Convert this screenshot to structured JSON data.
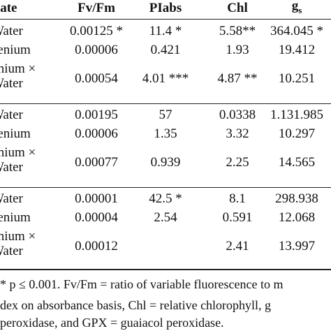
{
  "table": {
    "header": {
      "label": "Variate",
      "columns": [
        "Fv/Fm",
        "PIabs",
        "Chl"
      ],
      "last": {
        "text": "g",
        "sub": "s"
      }
    },
    "groups": [
      {
        "rows": [
          {
            "label": [
              "Water"
            ],
            "cells": [
              "0.00125 *",
              "11.4 *",
              "5.58**",
              "364.045 *"
            ]
          },
          {
            "label": [
              "Selenium"
            ],
            "cells": [
              "0.00006",
              "0.421",
              "1.93",
              "19.412"
            ]
          },
          {
            "label": [
              "Selenium ×",
              "Water"
            ],
            "cells": [
              "0.00054",
              "4.01 ***",
              "4.87 **",
              "10.251"
            ]
          }
        ]
      },
      {
        "rows": [
          {
            "label": [
              "Water"
            ],
            "cells": [
              "0.00195",
              "57",
              "0.0338",
              "1.131.985"
            ]
          },
          {
            "label": [
              "Selenium"
            ],
            "cells": [
              "0.00006",
              "1.35",
              "3.32",
              "10.297"
            ]
          },
          {
            "label": [
              "Selenium ×",
              "Water"
            ],
            "cells": [
              "0.00077",
              "0.939",
              "2.25",
              "14.565"
            ]
          }
        ]
      },
      {
        "rows": [
          {
            "label": [
              "Water"
            ],
            "cells": [
              "0.00001",
              "42.5 *",
              "8.1",
              "298.938"
            ]
          },
          {
            "label": [
              "Selenium"
            ],
            "cells": [
              "0.00004",
              "2.54",
              "0.591",
              "12.068"
            ]
          },
          {
            "label": [
              "Selenium ×",
              "Water"
            ],
            "cells": [
              "0.00012",
              null,
              "2.41",
              "13.997"
            ]
          }
        ]
      }
    ],
    "notes": [
      "* p ≤ 0.001. Fv/Fm = ratio of variable fluorescence to m",
      "dex on absorbance basis, Chl = relative chlorophyll, g",
      "peroxidase, and GPX = guaiacol peroxidase."
    ]
  }
}
